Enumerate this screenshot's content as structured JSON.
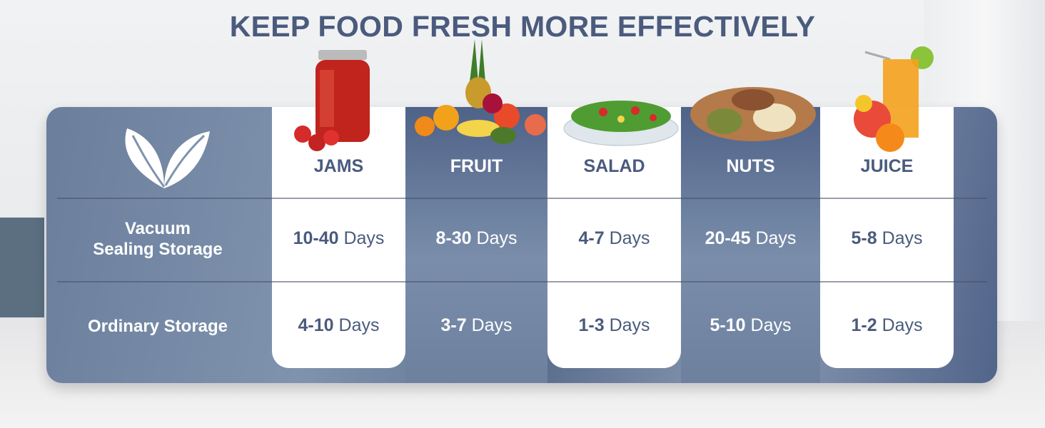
{
  "title": "KEEP FOOD FRESH MORE EFFECTIVELY",
  "row_labels": [
    "Vacuum",
    "Sealing Storage",
    "Ordinary Storage"
  ],
  "columns": [
    {
      "name": "JAMS",
      "vacuum": "10-40",
      "ordinary": "4-10",
      "style": "white"
    },
    {
      "name": "FRUIT",
      "vacuum": "8-30",
      "ordinary": "3-7",
      "style": "blue"
    },
    {
      "name": "SALAD",
      "vacuum": "4-7",
      "ordinary": "1-3",
      "style": "white"
    },
    {
      "name": "NUTS",
      "vacuum": "20-45",
      "ordinary": "5-10",
      "style": "blue"
    },
    {
      "name": "JUICE",
      "vacuum": "5-8",
      "ordinary": "1-2",
      "style": "white"
    }
  ],
  "unit": "Days",
  "icons": {
    "logo": "leaf-icon"
  },
  "colors": {
    "title": "#4a5b7d",
    "panel": "#6b7f9d",
    "white_column": "#ffffff"
  }
}
